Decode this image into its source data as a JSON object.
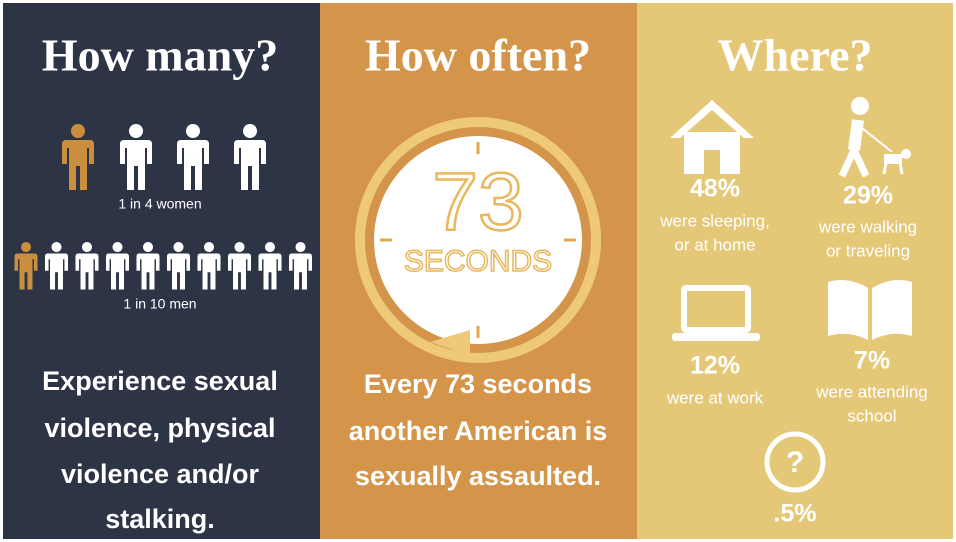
{
  "panels": [
    {
      "title": "How many?",
      "women": "1 in 4 women",
      "men": "1 in 10 men",
      "statement": {
        "lines": [
          "Experience sexual",
          "violence, physical",
          "violence and/or",
          "stalking."
        ]
      }
    },
    {
      "title": "How often?",
      "clock_number": "73",
      "clock_unit": "SECONDS",
      "statement": {
        "lines": [
          "Every 73 seconds",
          "another American is",
          "sexually assaulted."
        ]
      }
    },
    {
      "title": "Where?",
      "items": [
        {
          "percent": "48%",
          "lines": [
            "were sleeping,",
            "or at home"
          ]
        },
        {
          "percent": "29%",
          "lines": [
            "were walking",
            "or traveling"
          ]
        },
        {
          "percent": "12%",
          "lines": [
            "were at work"
          ]
        },
        {
          "percent": "7%",
          "lines": [
            "were attending",
            "school"
          ]
        },
        {
          "percent": ".5%",
          "icon": "?"
        }
      ]
    }
  ]
}
